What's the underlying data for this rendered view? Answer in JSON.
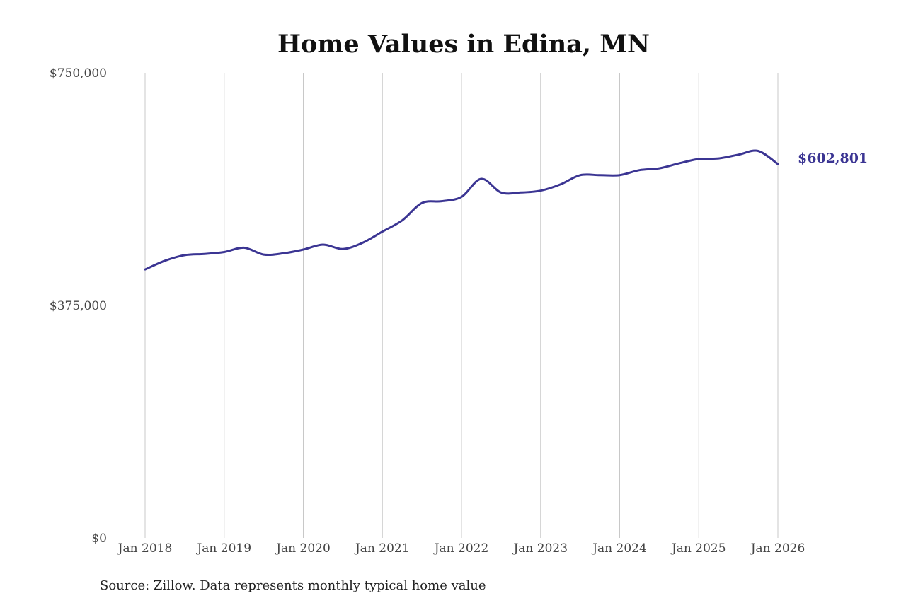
{
  "chart_data": {
    "type": "line",
    "title": "Home Values in Edina, MN",
    "source": "Source: Zillow. Data represents monthly typical home value",
    "xlabel": "",
    "ylabel": "",
    "ylim": [
      0,
      750000
    ],
    "yticks": [
      {
        "value": 0,
        "label": "$0"
      },
      {
        "value": 375000,
        "label": "$375,000"
      },
      {
        "value": 750000,
        "label": "$750,000"
      }
    ],
    "xlim": [
      "2018-01",
      "2026-01"
    ],
    "xticks": [
      {
        "value": "2018-01",
        "label": "Jan 2018"
      },
      {
        "value": "2019-01",
        "label": "Jan 2019"
      },
      {
        "value": "2020-01",
        "label": "Jan 2020"
      },
      {
        "value": "2021-01",
        "label": "Jan 2021"
      },
      {
        "value": "2022-01",
        "label": "Jan 2022"
      },
      {
        "value": "2023-01",
        "label": "Jan 2023"
      },
      {
        "value": "2024-01",
        "label": "Jan 2024"
      },
      {
        "value": "2025-01",
        "label": "Jan 2025"
      },
      {
        "value": "2026-01",
        "label": "Jan 2026"
      }
    ],
    "grid": "vertical",
    "line_color": "#3b3593",
    "end_label": "$602,801",
    "series": [
      {
        "x": [
          "2018-01",
          "2018-04",
          "2018-07",
          "2018-10",
          "2019-01",
          "2019-04",
          "2019-07",
          "2019-10",
          "2020-01",
          "2020-04",
          "2020-07",
          "2020-10",
          "2021-01",
          "2021-04",
          "2021-07",
          "2021-10",
          "2022-01",
          "2022-04",
          "2022-07",
          "2022-10",
          "2023-01",
          "2023-04",
          "2023-07",
          "2023-10",
          "2024-01",
          "2024-04",
          "2024-07",
          "2024-10",
          "2025-01",
          "2025-04",
          "2025-07",
          "2025-10",
          "2026-01"
        ],
        "values": [
          433000,
          447000,
          456000,
          458000,
          461000,
          468000,
          457000,
          459000,
          465000,
          473000,
          466000,
          476000,
          494000,
          512000,
          540000,
          543000,
          550000,
          579000,
          557000,
          557000,
          560000,
          570000,
          585000,
          585000,
          585000,
          593000,
          596000,
          604000,
          611000,
          612000,
          618000,
          624000,
          602801
        ]
      }
    ]
  }
}
